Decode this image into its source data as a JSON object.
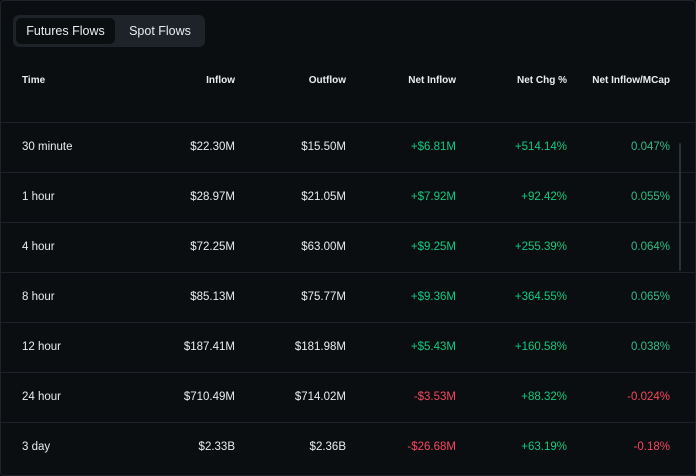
{
  "tabs": {
    "futures_label": "Futures Flows",
    "spot_label": "Spot Flows",
    "active": "Futures Flows"
  },
  "table": {
    "headers": {
      "time": "Time",
      "inflow": "Inflow",
      "outflow": "Outflow",
      "net_inflow": "Net Inflow",
      "net_chg": "Net Chg %",
      "net_inflow_mcap": "Net Inflow/MCap"
    },
    "rows": [
      {
        "time": "30 minute",
        "inflow": "$22.30M",
        "outflow": "$15.50M",
        "net_inflow": "+$6.81M",
        "net_chg": "+514.14%",
        "mcap": "0.047%"
      },
      {
        "time": "1 hour",
        "inflow": "$28.97M",
        "outflow": "$21.05M",
        "net_inflow": "+$7.92M",
        "net_chg": "+92.42%",
        "mcap": "0.055%"
      },
      {
        "time": "4 hour",
        "inflow": "$72.25M",
        "outflow": "$63.00M",
        "net_inflow": "+$9.25M",
        "net_chg": "+255.39%",
        "mcap": "0.064%"
      },
      {
        "time": "8 hour",
        "inflow": "$85.13M",
        "outflow": "$75.77M",
        "net_inflow": "+$9.36M",
        "net_chg": "+364.55%",
        "mcap": "0.065%"
      },
      {
        "time": "12 hour",
        "inflow": "$187.41M",
        "outflow": "$181.98M",
        "net_inflow": "+$5.43M",
        "net_chg": "+160.58%",
        "mcap": "0.038%"
      },
      {
        "time": "24 hour",
        "inflow": "$710.49M",
        "outflow": "$714.02M",
        "net_inflow": "-$3.53M",
        "net_chg": "+88.32%",
        "mcap": "-0.024%"
      },
      {
        "time": "3 day",
        "inflow": "$2.33B",
        "outflow": "$2.36B",
        "net_inflow": "-$26.68M",
        "net_chg": "+63.19%",
        "mcap": "-0.18%"
      }
    ]
  },
  "colors": {
    "background": "#0b0e11",
    "positive": "#0ecb81",
    "negative": "#f6465d",
    "text": "#eaecef",
    "toggle_bg": "#1e2329"
  }
}
